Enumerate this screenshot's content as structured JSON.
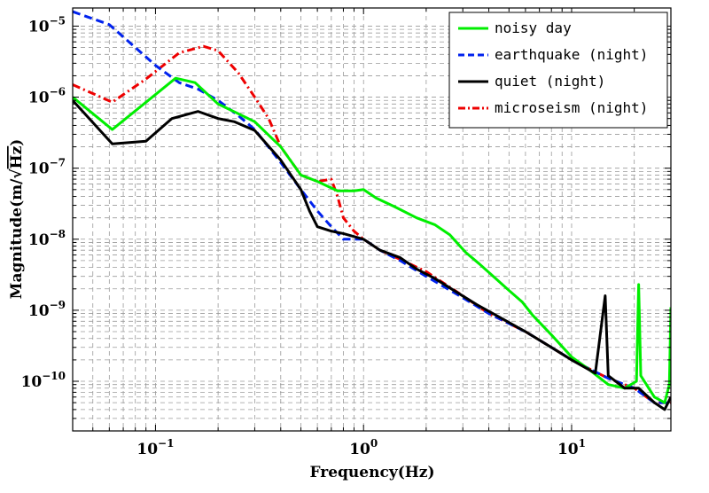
{
  "chart_data": {
    "type": "line",
    "xscale": "log",
    "yscale": "log",
    "xlim": [
      0.04,
      30
    ],
    "ylim": [
      2e-11,
      1.8e-05
    ],
    "xlabel": "Frequency(Hz)",
    "ylabel": "Magnitude(m/√Hz)",
    "ylabel_parts": {
      "prefix": "Magnitude(m/",
      "radical": "√",
      "radicand": "Hz",
      "suffix": ")"
    },
    "grid": true,
    "legend_position": "top-right",
    "x_ticks": [
      {
        "value": 0.1,
        "base": "10",
        "exp": "−1"
      },
      {
        "value": 1,
        "base": "10",
        "exp": "0"
      },
      {
        "value": 10,
        "base": "10",
        "exp": "1"
      }
    ],
    "y_ticks": [
      {
        "value": 1e-10,
        "base": "10",
        "exp": "−10"
      },
      {
        "value": 1e-09,
        "base": "10",
        "exp": "−9"
      },
      {
        "value": 1e-08,
        "base": "10",
        "exp": "−8"
      },
      {
        "value": 1e-07,
        "base": "10",
        "exp": "−7"
      },
      {
        "value": 1e-06,
        "base": "10",
        "exp": "−6"
      },
      {
        "value": 1e-05,
        "base": "10",
        "exp": "−5"
      }
    ],
    "series": [
      {
        "name": "noisy day",
        "color": "#00ee00",
        "dash": "solid",
        "points": [
          [
            0.04,
            1e-06
          ],
          [
            0.062,
            3.5e-07
          ],
          [
            0.125,
            1.85e-06
          ],
          [
            0.155,
            1.6e-06
          ],
          [
            0.2,
            8e-07
          ],
          [
            0.24,
            6.2e-07
          ],
          [
            0.3,
            4.5e-07
          ],
          [
            0.4,
            2e-07
          ],
          [
            0.5,
            8e-08
          ],
          [
            0.6,
            6.5e-08
          ],
          [
            0.75,
            4.8e-08
          ],
          [
            0.9,
            4.8e-08
          ],
          [
            1.0,
            5e-08
          ],
          [
            1.15,
            3.8e-08
          ],
          [
            1.4,
            2.9e-08
          ],
          [
            1.8,
            2e-08
          ],
          [
            2.2,
            1.6e-08
          ],
          [
            2.6,
            1.15e-08
          ],
          [
            3.1,
            6.5e-09
          ],
          [
            3.6,
            4.5e-09
          ],
          [
            4.2,
            3e-09
          ],
          [
            5.0,
            1.9e-09
          ],
          [
            5.8,
            1.3e-09
          ],
          [
            6.5,
            8.5e-10
          ],
          [
            8,
            4.5e-10
          ],
          [
            10,
            2.2e-10
          ],
          [
            12,
            1.5e-10
          ],
          [
            15,
            9e-11
          ],
          [
            18,
            8e-11
          ],
          [
            20.5,
            1e-10
          ],
          [
            21,
            2.3e-09
          ],
          [
            21.5,
            1.2e-10
          ],
          [
            25,
            6e-11
          ],
          [
            28,
            5e-11
          ],
          [
            29.5,
            9e-11
          ],
          [
            30,
            1.1e-09
          ]
        ]
      },
      {
        "name": "earthquake (night)",
        "color": "#0022ee",
        "dash": "dash",
        "points": [
          [
            0.04,
            1.6e-05
          ],
          [
            0.06,
            1.05e-05
          ],
          [
            0.08,
            5e-06
          ],
          [
            0.1,
            2.8e-06
          ],
          [
            0.13,
            1.6e-06
          ],
          [
            0.16,
            1.3e-06
          ],
          [
            0.2,
            9e-07
          ],
          [
            0.25,
            5.5e-07
          ],
          [
            0.3,
            3.5e-07
          ],
          [
            0.4,
            1.2e-07
          ],
          [
            0.5,
            5e-08
          ],
          [
            0.6,
            2.5e-08
          ],
          [
            0.7,
            1.5e-08
          ],
          [
            0.8,
            1e-08
          ],
          [
            1.0,
            1e-08
          ],
          [
            1.2,
            7e-09
          ],
          [
            1.5,
            5e-09
          ],
          [
            2,
            3e-09
          ],
          [
            3,
            1.5e-09
          ],
          [
            4,
            9e-10
          ],
          [
            6,
            5e-10
          ],
          [
            8,
            3e-10
          ],
          [
            10,
            2e-10
          ],
          [
            15,
            1.1e-10
          ],
          [
            20,
            8e-11
          ],
          [
            25,
            5e-11
          ],
          [
            30,
            5e-11
          ]
        ]
      },
      {
        "name": "quiet (night)",
        "color": "#000000",
        "dash": "solid",
        "points": [
          [
            0.04,
            9e-07
          ],
          [
            0.062,
            2.2e-07
          ],
          [
            0.09,
            2.4e-07
          ],
          [
            0.12,
            5e-07
          ],
          [
            0.16,
            6.3e-07
          ],
          [
            0.2,
            5e-07
          ],
          [
            0.24,
            4.5e-07
          ],
          [
            0.3,
            3.4e-07
          ],
          [
            0.4,
            1.3e-07
          ],
          [
            0.5,
            5e-08
          ],
          [
            0.55,
            2.5e-08
          ],
          [
            0.6,
            1.5e-08
          ],
          [
            0.7,
            1.3e-08
          ],
          [
            0.8,
            1.2e-08
          ],
          [
            1.0,
            1e-08
          ],
          [
            1.2,
            7e-09
          ],
          [
            1.5,
            5.5e-09
          ],
          [
            1.8,
            3.8e-09
          ],
          [
            2.2,
            2.8e-09
          ],
          [
            2.8,
            1.8e-09
          ],
          [
            3.5,
            1.2e-09
          ],
          [
            4.5,
            8e-10
          ],
          [
            6,
            5e-10
          ],
          [
            8,
            3e-10
          ],
          [
            10,
            2e-10
          ],
          [
            13,
            1.3e-10
          ],
          [
            14.5,
            1.6e-09
          ],
          [
            15,
            1.2e-10
          ],
          [
            18,
            8e-11
          ],
          [
            21,
            8e-11
          ],
          [
            25,
            5e-11
          ],
          [
            28,
            4e-11
          ],
          [
            30,
            6e-11
          ]
        ]
      },
      {
        "name": "microseism (night)",
        "color": "#ee0000",
        "dash": "dashdot",
        "points": [
          [
            0.04,
            1.5e-06
          ],
          [
            0.062,
            8.5e-07
          ],
          [
            0.09,
            1.8e-06
          ],
          [
            0.13,
            4.2e-06
          ],
          [
            0.17,
            5.2e-06
          ],
          [
            0.2,
            4.5e-06
          ],
          [
            0.25,
            2.2e-06
          ],
          [
            0.3,
            1e-06
          ],
          [
            0.35,
            5e-07
          ],
          [
            0.4,
            2e-07
          ],
          [
            0.5,
            8e-08
          ],
          [
            0.6,
            6.5e-08
          ],
          [
            0.7,
            7e-08
          ],
          [
            0.75,
            4e-08
          ],
          [
            0.8,
            2e-08
          ],
          [
            0.9,
            1.3e-08
          ],
          [
            1.0,
            1e-08
          ],
          [
            1.2,
            7e-09
          ],
          [
            1.5,
            5.2e-09
          ],
          [
            2,
            3.5e-09
          ],
          [
            3,
            1.6e-09
          ],
          [
            4,
            9e-10
          ],
          [
            6,
            5e-10
          ],
          [
            8,
            3e-10
          ],
          [
            10,
            2e-10
          ],
          [
            15,
            1.1e-10
          ],
          [
            20,
            8e-11
          ],
          [
            25,
            5e-11
          ],
          [
            30,
            5e-11
          ]
        ]
      }
    ]
  }
}
